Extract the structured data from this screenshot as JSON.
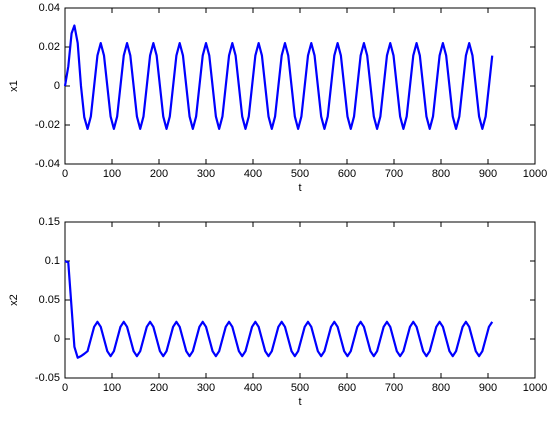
{
  "chart_data": [
    {
      "type": "line",
      "xlabel": "t",
      "ylabel": "x1",
      "color": "#0000ff",
      "xlim": [
        0,
        1000
      ],
      "xticks": [
        0,
        100,
        200,
        300,
        400,
        500,
        600,
        700,
        800,
        900,
        1000
      ],
      "ylim": [
        -0.04,
        0.04
      ],
      "yticks": [
        -0.04,
        -0.02,
        0,
        0.02,
        0.04
      ],
      "x": [
        0,
        7,
        14,
        20,
        27,
        34,
        41,
        48,
        55,
        62,
        69,
        76,
        83,
        90,
        97,
        104,
        111,
        118,
        125,
        132,
        139,
        146,
        153,
        160,
        167,
        174,
        181,
        188,
        195,
        202,
        209,
        216,
        223,
        230,
        237,
        244,
        251,
        258,
        265,
        272,
        279,
        286,
        293,
        300,
        307,
        314,
        321,
        328,
        335,
        342,
        349,
        356,
        363,
        370,
        377,
        384,
        391,
        398,
        405,
        412,
        419,
        426,
        433,
        440,
        447,
        454,
        461,
        468,
        475,
        482,
        489,
        496,
        503,
        510,
        517,
        524,
        531,
        538,
        545,
        552,
        559,
        566,
        573,
        580,
        587,
        594,
        601,
        608,
        615,
        622,
        629,
        636,
        643,
        650,
        657,
        664,
        671,
        678,
        685,
        692,
        699,
        706,
        713,
        720,
        727,
        734,
        741,
        748,
        755,
        762,
        769,
        776,
        783,
        790,
        797,
        804,
        811,
        818,
        825,
        832,
        839,
        846,
        853,
        860,
        867,
        874,
        881,
        888,
        895,
        902,
        909
      ],
      "values": [
        0,
        0.01,
        0.027,
        0.031,
        0.022,
        0,
        -0.016,
        -0.022,
        -0.0156,
        0,
        0.0156,
        0.022,
        0.0156,
        0,
        -0.0156,
        -0.022,
        -0.0156,
        0,
        0.0156,
        0.022,
        0.0156,
        0,
        -0.0156,
        -0.022,
        -0.0156,
        0,
        0.0156,
        0.022,
        0.0156,
        0,
        -0.0156,
        -0.022,
        -0.0156,
        0,
        0.0156,
        0.022,
        0.0156,
        0,
        -0.0156,
        -0.022,
        -0.0156,
        0,
        0.0156,
        0.022,
        0.0156,
        0,
        -0.0156,
        -0.022,
        -0.0156,
        0,
        0.0156,
        0.022,
        0.0156,
        0,
        -0.0156,
        -0.022,
        -0.0156,
        0,
        0.0156,
        0.022,
        0.0156,
        0,
        -0.0156,
        -0.022,
        -0.0156,
        0,
        0.0156,
        0.022,
        0.0156,
        0,
        -0.0156,
        -0.022,
        -0.0156,
        0,
        0.0156,
        0.022,
        0.0156,
        0,
        -0.0156,
        -0.022,
        -0.0156,
        0,
        0.0156,
        0.022,
        0.0156,
        0,
        -0.0156,
        -0.022,
        -0.0156,
        0,
        0.0156,
        0.022,
        0.0156,
        0,
        -0.0156,
        -0.022,
        -0.0156,
        0,
        0.0156,
        0.022,
        0.0156,
        0,
        -0.0156,
        -0.022,
        -0.0156,
        0,
        0.0156,
        0.022,
        0.0156,
        0,
        -0.0156,
        -0.022,
        -0.0156,
        0,
        0.0156,
        0.022,
        0.0156,
        0,
        -0.0156,
        -0.022,
        -0.0156,
        0,
        0.0156,
        0.022,
        0.0156,
        0,
        -0.0156,
        -0.022,
        -0.0156,
        0,
        0.0156
      ]
    },
    {
      "type": "line",
      "xlabel": "t",
      "ylabel": "x2",
      "color": "#0000ff",
      "xlim": [
        0,
        1000
      ],
      "xticks": [
        0,
        100,
        200,
        300,
        400,
        500,
        600,
        700,
        800,
        900,
        1000
      ],
      "ylim": [
        -0.05,
        0.15
      ],
      "yticks": [
        -0.05,
        0,
        0.05,
        0.1,
        0.15
      ],
      "x": [
        0,
        7,
        14,
        20,
        27,
        34,
        41,
        48,
        55,
        62,
        69,
        76,
        83,
        90,
        97,
        104,
        111,
        118,
        125,
        132,
        139,
        146,
        153,
        160,
        167,
        174,
        181,
        188,
        195,
        202,
        209,
        216,
        223,
        230,
        237,
        244,
        251,
        258,
        265,
        272,
        279,
        286,
        293,
        300,
        307,
        314,
        321,
        328,
        335,
        342,
        349,
        356,
        363,
        370,
        377,
        384,
        391,
        398,
        405,
        412,
        419,
        426,
        433,
        440,
        447,
        454,
        461,
        468,
        475,
        482,
        489,
        496,
        503,
        510,
        517,
        524,
        531,
        538,
        545,
        552,
        559,
        566,
        573,
        580,
        587,
        594,
        601,
        608,
        615,
        622,
        629,
        636,
        643,
        650,
        657,
        664,
        671,
        678,
        685,
        692,
        699,
        706,
        713,
        720,
        727,
        734,
        741,
        748,
        755,
        762,
        769,
        776,
        783,
        790,
        797,
        804,
        811,
        818,
        825,
        832,
        839,
        846,
        853,
        860,
        867,
        874,
        881,
        888,
        895,
        902,
        909
      ],
      "values": [
        0.1,
        0.098,
        0.04,
        -0.01,
        -0.024,
        -0.022,
        -0.019,
        -0.0156,
        0,
        0.0156,
        0.022,
        0.0156,
        0,
        -0.0156,
        -0.022,
        -0.0156,
        0,
        0.0156,
        0.022,
        0.0156,
        0,
        -0.0156,
        -0.022,
        -0.0156,
        0,
        0.0156,
        0.022,
        0.0156,
        0,
        -0.0156,
        -0.022,
        -0.0156,
        0,
        0.0156,
        0.022,
        0.0156,
        0,
        -0.0156,
        -0.022,
        -0.0156,
        0,
        0.0156,
        0.022,
        0.0156,
        0,
        -0.0156,
        -0.022,
        -0.0156,
        0,
        0.0156,
        0.022,
        0.0156,
        0,
        -0.0156,
        -0.022,
        -0.0156,
        0,
        0.0156,
        0.022,
        0.0156,
        0,
        -0.0156,
        -0.022,
        -0.0156,
        0,
        0.0156,
        0.022,
        0.0156,
        0,
        -0.0156,
        -0.022,
        -0.0156,
        0,
        0.0156,
        0.022,
        0.0156,
        0,
        -0.0156,
        -0.022,
        -0.0156,
        0,
        0.0156,
        0.022,
        0.0156,
        0,
        -0.0156,
        -0.022,
        -0.0156,
        0,
        0.0156,
        0.022,
        0.0156,
        0,
        -0.0156,
        -0.022,
        -0.0156,
        0,
        0.0156,
        0.022,
        0.0156,
        0,
        -0.0156,
        -0.022,
        -0.0156,
        0,
        0.0156,
        0.022,
        0.0156,
        0,
        -0.0156,
        -0.022,
        -0.0156,
        0,
        0.0156,
        0.022,
        0.0156,
        0,
        -0.0156,
        -0.022,
        -0.0156,
        0,
        0.0156,
        0.022,
        0.0156,
        0,
        -0.0156,
        -0.022,
        -0.0156,
        0,
        0.0156,
        0.022
      ]
    }
  ]
}
